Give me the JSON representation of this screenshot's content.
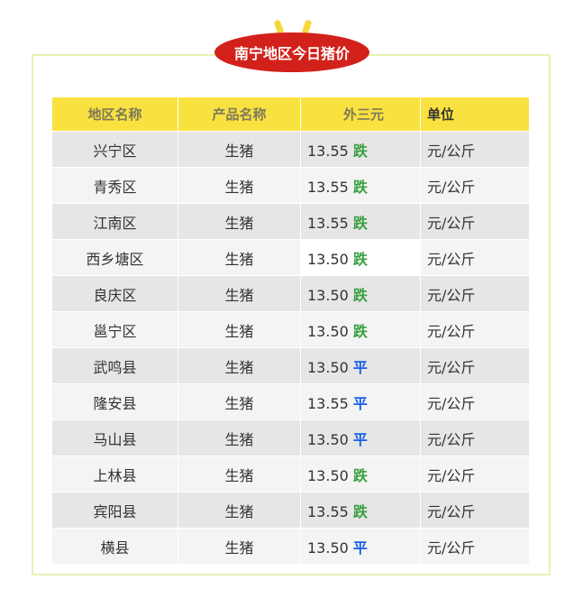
{
  "title": "南宁地区今日猪价",
  "colors": {
    "down": "#3aa043",
    "flat": "#1a5ee6",
    "badge": "#d2211b",
    "header": "#f9e240"
  },
  "headers": [
    "地区名称",
    "产品名称",
    "外三元",
    "单位"
  ],
  "rows": [
    {
      "region": "兴宁区",
      "product": "生猪",
      "price": "13.55",
      "trend": "跌",
      "unit": "元/公斤"
    },
    {
      "region": "青秀区",
      "product": "生猪",
      "price": "13.55",
      "trend": "跌",
      "unit": "元/公斤"
    },
    {
      "region": "江南区",
      "product": "生猪",
      "price": "13.55",
      "trend": "跌",
      "unit": "元/公斤"
    },
    {
      "region": "西乡塘区",
      "product": "生猪",
      "price": "13.50",
      "trend": "跌",
      "unit": "元/公斤"
    },
    {
      "region": "良庆区",
      "product": "生猪",
      "price": "13.50",
      "trend": "跌",
      "unit": "元/公斤"
    },
    {
      "region": "邕宁区",
      "product": "生猪",
      "price": "13.50",
      "trend": "跌",
      "unit": "元/公斤"
    },
    {
      "region": "武鸣县",
      "product": "生猪",
      "price": "13.50",
      "trend": "平",
      "unit": "元/公斤"
    },
    {
      "region": "隆安县",
      "product": "生猪",
      "price": "13.55",
      "trend": "平",
      "unit": "元/公斤"
    },
    {
      "region": "马山县",
      "product": "生猪",
      "price": "13.50",
      "trend": "平",
      "unit": "元/公斤"
    },
    {
      "region": "上林县",
      "product": "生猪",
      "price": "13.50",
      "trend": "跌",
      "unit": "元/公斤"
    },
    {
      "region": "宾阳县",
      "product": "生猪",
      "price": "13.55",
      "trend": "跌",
      "unit": "元/公斤"
    },
    {
      "region": "横县",
      "product": "生猪",
      "price": "13.50",
      "trend": "平",
      "unit": "元/公斤"
    }
  ]
}
